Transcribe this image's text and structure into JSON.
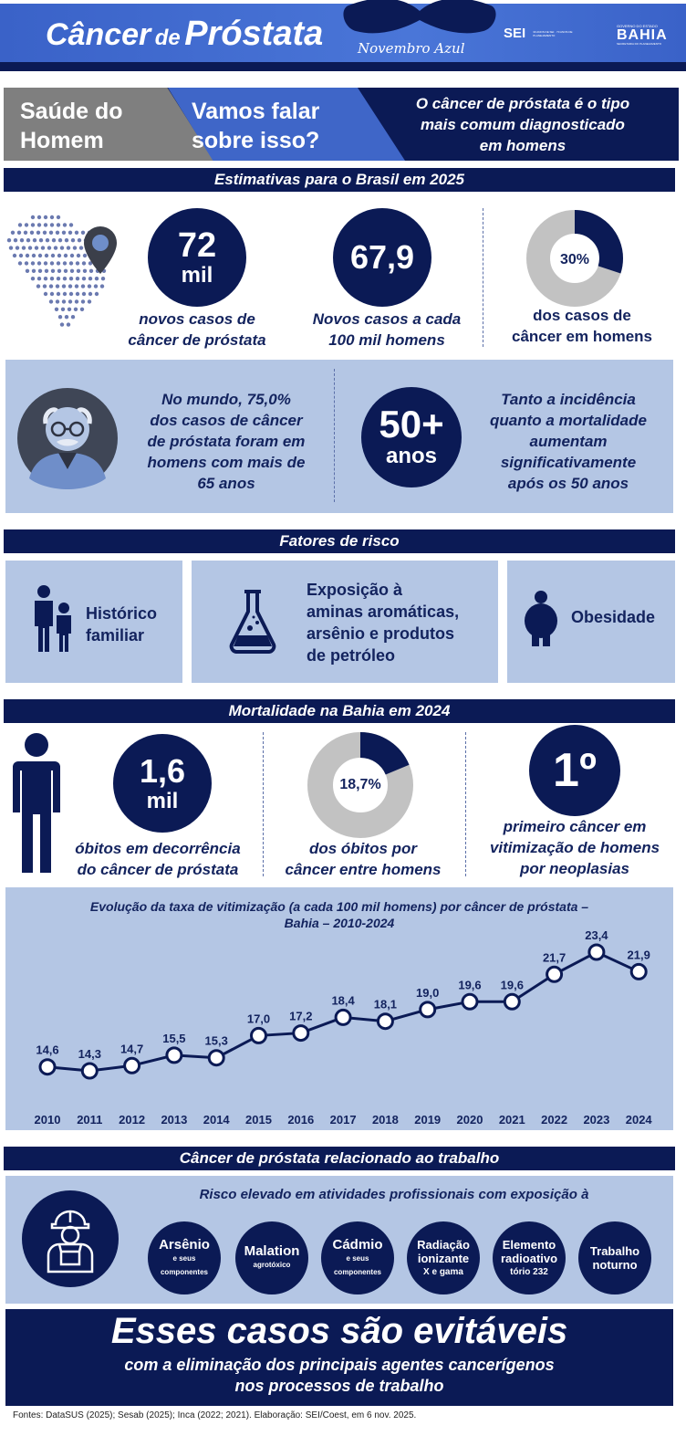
{
  "header": {
    "title_part1": "Câncer",
    "title_part2": "de",
    "title_part3": "Próstata",
    "subtitle": "Novembro Azul",
    "logo_sei": "SEI",
    "logo_sei_small": "30 ANOS DE SEI · 70 ANOS DE PLANEJAMENTO",
    "logo_bahia_top": "GOVERNO DO ESTADO",
    "logo_bahia": "BAHIA",
    "logo_bahia_small": "SECRETARIA DO PLANEJAMENTO"
  },
  "banner": {
    "left_line1": "Saúde do",
    "left_line2": "Homem",
    "mid_line1": "Vamos falar",
    "mid_line2": "sobre isso?",
    "right_line1": "O câncer de próstata é o tipo",
    "right_line2": "mais comum diagnosticado",
    "right_line3": "em homens"
  },
  "estimates": {
    "title": "Estimativas para o Brasil em 2025",
    "stat1_value": "72",
    "stat1_unit": "mil",
    "stat1_line1": "novos casos de",
    "stat1_line2": "câncer de próstata",
    "stat2_value": "67,9",
    "stat2_line1": "Novos casos a cada",
    "stat2_line2": "100 mil homens",
    "stat3_value": "30%",
    "stat3_fraction": 0.3,
    "stat3_line1": "dos casos de",
    "stat3_line2": "câncer em homens"
  },
  "world": {
    "line1": "No mundo, 75,0%",
    "line2": "dos casos de câncer",
    "line3": "de próstata foram em",
    "line4": "homens com mais de",
    "line5": "65 anos",
    "age_value": "50+",
    "age_unit": "anos",
    "incidence_line1": "Tanto a incidência",
    "incidence_line2": "quanto a mortalidade",
    "incidence_line3": "aumentam",
    "incidence_line4": "significativamente",
    "incidence_line5": "após os 50 anos"
  },
  "risk": {
    "title": "Fatores de risco",
    "item1_line1": "Histórico",
    "item1_line2": "familiar",
    "item2_line1": "Exposição à",
    "item2_line2": "aminas aromáticas,",
    "item2_line3": "arsênio e produtos",
    "item2_line4": "de petróleo",
    "item3": "Obesidade"
  },
  "mortality": {
    "title": "Mortalidade na Bahia em 2024",
    "stat1_value": "1,6",
    "stat1_unit": "mil",
    "stat1_line1": "óbitos em decorrência",
    "stat1_line2": "do câncer de próstata",
    "stat2_value": "18,7%",
    "stat2_fraction": 0.187,
    "stat2_line1": "dos óbitos por",
    "stat2_line2": "câncer entre homens",
    "stat3_value": "1º",
    "stat3_line1": "primeiro câncer em",
    "stat3_line2": "vitimização de homens",
    "stat3_line3": "por neoplasias"
  },
  "chart_data": {
    "type": "line",
    "title_line1": "Evolução da taxa de vitimização (a cada 100 mil homens) por câncer de próstata –",
    "title_line2": "Bahia – 2010-2024",
    "x": [
      "2010",
      "2011",
      "2012",
      "2013",
      "2014",
      "2015",
      "2016",
      "2017",
      "2018",
      "2019",
      "2020",
      "2021",
      "2022",
      "2023",
      "2024"
    ],
    "values": [
      14.6,
      14.3,
      14.7,
      15.5,
      15.3,
      17.0,
      17.2,
      18.4,
      18.1,
      19.0,
      19.6,
      19.6,
      21.7,
      23.4,
      21.9
    ],
    "labels": [
      "14,6",
      "14,3",
      "14,7",
      "15,5",
      "15,3",
      "17,0",
      "17,2",
      "18,4",
      "18,1",
      "19,0",
      "19,6",
      "19,6",
      "21,7",
      "23,4",
      "21,9"
    ],
    "line_color": "#0b1a55"
  },
  "work": {
    "title": "Câncer de próstata relacionado ao trabalho",
    "subtitle": "Risco elevado em atividades profissionais com exposição à",
    "agents": [
      {
        "main": "Arsênio",
        "sub": "e seus",
        "sub2": "componentes"
      },
      {
        "main": "Malation",
        "sub": "agrotóxico",
        "sub2": ""
      },
      {
        "main": "Cádmio",
        "sub": "e seus",
        "sub2": "componentes"
      },
      {
        "main": "Radiação",
        "sub": "ionizante",
        "sub2": "X e gama"
      },
      {
        "main": "Elemento",
        "sub": "radioativo",
        "sub2": "tório 232"
      },
      {
        "main": "Trabalho",
        "sub": "noturno",
        "sub2": ""
      }
    ]
  },
  "footer": {
    "headline": "Esses casos são evitáveis",
    "line1": "com a eliminação dos principais agentes cancerígenos",
    "line2": "nos processos de trabalho",
    "sources": "Fontes: DataSUS (2025); Sesab (2025); Inca (2022; 2021). Elaboração: SEI/Coest, em 6 nov. 2025."
  }
}
